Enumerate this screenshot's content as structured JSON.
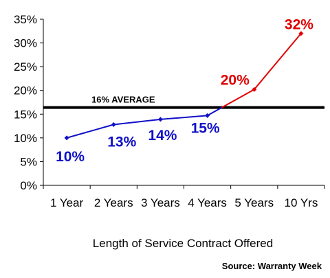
{
  "chart_data": {
    "type": "line",
    "categories": [
      "1 Year",
      "2 Years",
      "3 Years",
      "4 Years",
      "5 Years",
      "10 Yrs"
    ],
    "series": [
      {
        "values": [
          10,
          12.8,
          13.9,
          14.7,
          20.2,
          32
        ]
      }
    ],
    "data_labels": [
      "10%",
      "13%",
      "14%",
      "15%",
      "20%",
      "32%"
    ],
    "segment_colors": [
      "#1010c8",
      "#1010c8",
      "#1010c8",
      "#e00000",
      "#e00000"
    ],
    "label_colors": [
      "#1010c8",
      "#1010c8",
      "#1010c8",
      "#1010c8",
      "#e00000",
      "#e00000"
    ],
    "average": {
      "value": 16.4,
      "label": "16% AVERAGE",
      "color": "#000000"
    },
    "ylim": [
      0,
      35
    ],
    "y_ticks": [
      0,
      5,
      10,
      15,
      20,
      25,
      30,
      35
    ],
    "y_tick_labels": [
      "0%",
      "5%",
      "10%",
      "15%",
      "20%",
      "25%",
      "30%",
      "35%"
    ],
    "xlabel": "Length of Service Contract Offered",
    "ylabel": "",
    "title": "",
    "source": "Source: Warranty Week",
    "grid": false,
    "legend": "none"
  }
}
